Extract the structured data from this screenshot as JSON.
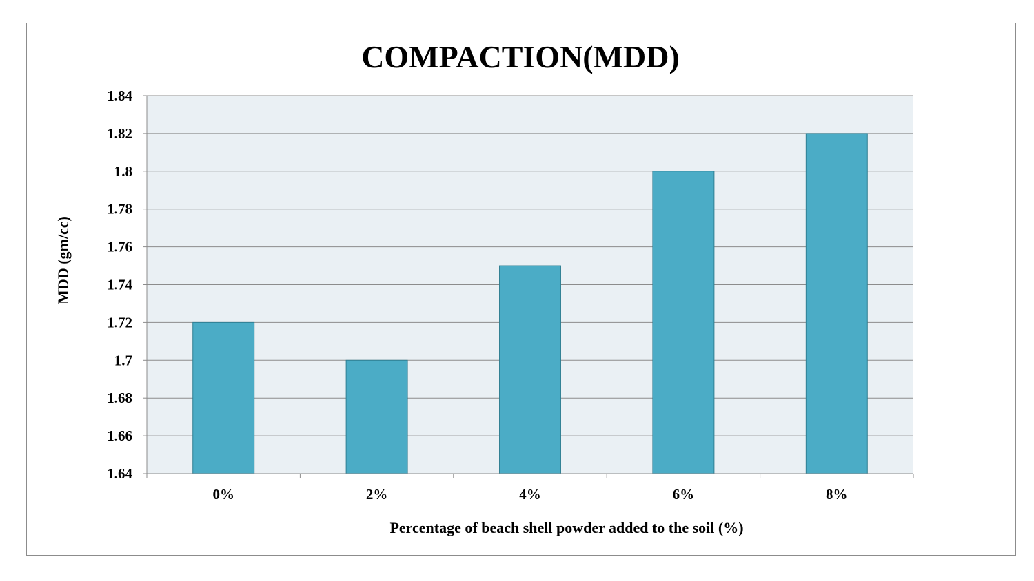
{
  "chart_data": {
    "type": "bar",
    "title": "COMPACTION(MDD)",
    "xlabel": "Percentage of beach shell powder added to the soil (%)",
    "ylabel": "MDD (gm/cc)",
    "categories": [
      "0%",
      "2%",
      "4%",
      "6%",
      "8%"
    ],
    "values": [
      1.72,
      1.7,
      1.75,
      1.8,
      1.82
    ],
    "ylim": [
      1.64,
      1.84
    ],
    "yticks": [
      1.64,
      1.66,
      1.68,
      1.7,
      1.72,
      1.74,
      1.76,
      1.78,
      1.8,
      1.82,
      1.84
    ],
    "ytick_labels": [
      "1.64",
      "1.66",
      "1.68",
      "1.7",
      "1.72",
      "1.74",
      "1.76",
      "1.78",
      "1.8",
      "1.82",
      "1.84"
    ],
    "grid": true,
    "legend": "none",
    "colors": {
      "bar": "#4bacc6",
      "bar_edge": "#2f7f93",
      "plot_background": "#eaf0f4",
      "gridline": "#8c8c8c"
    }
  }
}
